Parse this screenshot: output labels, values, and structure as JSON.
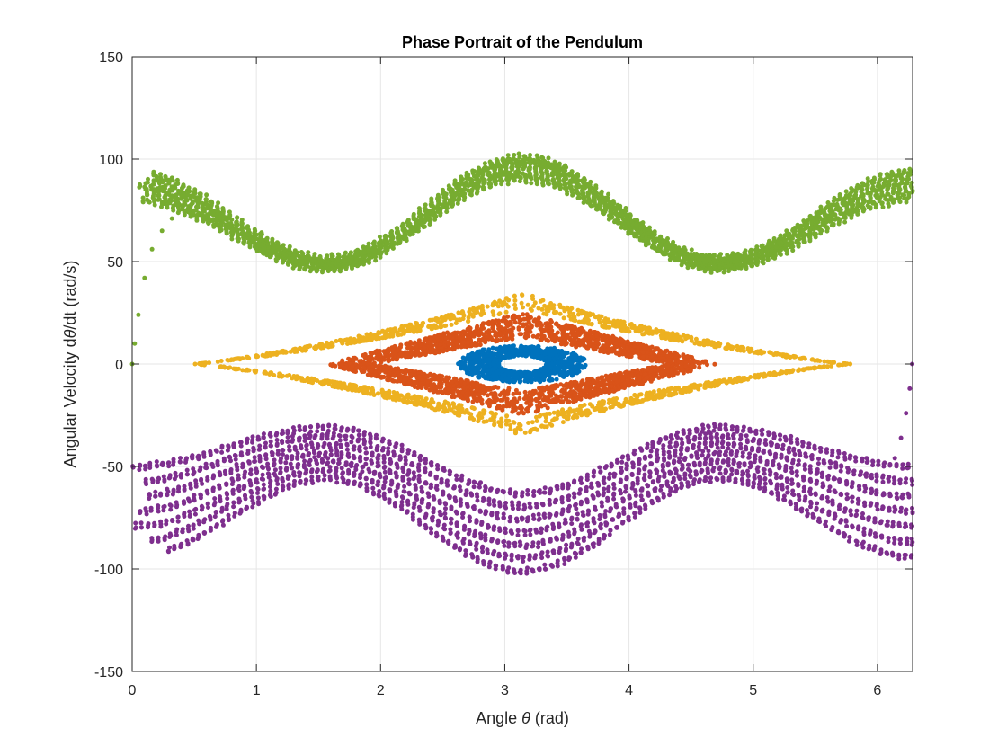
{
  "chart_data": {
    "type": "scatter",
    "title": "Phase Portrait of the Pendulum",
    "xlabel_prefix": "Angle ",
    "xlabel_symbol": "θ",
    "xlabel_suffix": " (rad)",
    "ylabel_prefix": "Angular Velocity d",
    "ylabel_symbol": "θ",
    "ylabel_suffix": "/dt (rad/s)",
    "xlim": [
      0,
      6.2832
    ],
    "ylim": [
      -150,
      150
    ],
    "xticks": [
      0,
      1,
      2,
      3,
      4,
      5,
      6
    ],
    "yticks": [
      -150,
      -100,
      -50,
      0,
      50,
      100,
      150
    ],
    "grid": true,
    "series": [
      {
        "color": "#0072BD",
        "kind": "ring",
        "center": [
          3.1416,
          0
        ],
        "x_range": [
          2.62,
          3.66
        ],
        "y_range": [
          -9,
          9
        ],
        "inner_x_range": [
          2.95,
          3.33
        ],
        "inner_y_range": [
          -4,
          4
        ]
      },
      {
        "color": "#D95319",
        "kind": "diamond-band",
        "center": [
          3.1416,
          0
        ],
        "x_range": [
          1.56,
          4.72
        ],
        "y_range": [
          -25,
          25
        ],
        "inner_x_range": [
          1.95,
          4.33
        ],
        "inner_y_range": [
          -13,
          13
        ]
      },
      {
        "color": "#EDB120",
        "kind": "diamond-orbit",
        "center": [
          3.1416,
          0
        ],
        "x_range": [
          0.5,
          5.78
        ],
        "y_range": [
          -35,
          35
        ]
      },
      {
        "color": "#77AC30",
        "kind": "rotation",
        "y_at_0": [
          80,
          94
        ],
        "y_at_pi_over_2": [
          46,
          52
        ],
        "y_at_pi": [
          90,
          101
        ],
        "y_at_3pi_over_2": [
          46,
          52
        ],
        "y_at_2pi": [
          80,
          94
        ],
        "transient": [
          [
            0,
            0
          ],
          [
            0.02,
            10
          ],
          [
            0.05,
            24
          ],
          [
            0.1,
            42
          ],
          [
            0.16,
            56
          ],
          [
            0.24,
            65
          ],
          [
            0.32,
            71
          ]
        ]
      },
      {
        "color": "#7E2F8E",
        "kind": "rotation",
        "y_at_0": [
          -94,
          -50
        ],
        "y_at_pi_over_2": [
          -56,
          -31
        ],
        "y_at_pi": [
          -101,
          -63
        ],
        "y_at_3pi_over_2": [
          -56,
          -31
        ],
        "y_at_2pi": [
          -94,
          -50
        ],
        "transient": [
          [
            6.28,
            0
          ],
          [
            6.26,
            -12
          ],
          [
            6.23,
            -24
          ],
          [
            6.19,
            -36
          ],
          [
            6.14,
            -46
          ]
        ]
      }
    ]
  }
}
